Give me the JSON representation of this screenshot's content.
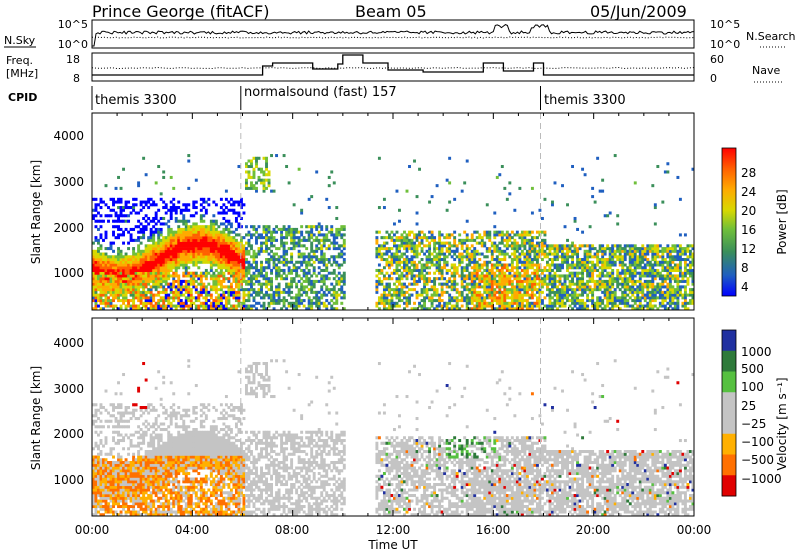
{
  "header": {
    "station": "Prince George (fitACF)",
    "beam": "Beam 05",
    "date": "05/Jun/2009"
  },
  "noise_panel": {
    "left_label": "N.Sky",
    "right_label": "N.Search",
    "left_ticks": [
      "10^5",
      "10^0"
    ],
    "right_ticks": [
      "10^5",
      "10^0"
    ]
  },
  "freq_panel": {
    "left_label_1": "Freq.",
    "left_label_2": "[MHz]",
    "right_label": "Nave",
    "left_ticks": [
      "18",
      "8"
    ],
    "right_ticks": [
      "60",
      "0"
    ]
  },
  "cpid": {
    "label": "CPID",
    "segments": [
      {
        "name": "themis 3300",
        "start_hour": 0,
        "end_hour": 6
      },
      {
        "name": "normalsound (fast) 157",
        "start_hour": 6,
        "end_hour": 18
      },
      {
        "name": "themis 3300",
        "start_hour": 18,
        "end_hour": 24
      }
    ]
  },
  "power_panel": {
    "ylabel": "Slant Range [km]",
    "yticks": [
      "4000",
      "3000",
      "2000",
      "1000"
    ],
    "colorbar_label": "Power [dB]",
    "colorbar_ticks": [
      "28",
      "24",
      "20",
      "16",
      "12",
      "8",
      "4"
    ]
  },
  "velocity_panel": {
    "ylabel": "Slant Range [km]",
    "yticks": [
      "4000",
      "3000",
      "2000",
      "1000"
    ],
    "colorbar_label": "Velocity [m s⁻¹]",
    "colorbar_ticks": [
      "1000",
      "500",
      "100",
      "25",
      "−25",
      "−100",
      "−500",
      "−1000"
    ]
  },
  "xaxis": {
    "label": "Time UT",
    "ticks": [
      "00:00",
      "04:00",
      "08:00",
      "12:00",
      "16:00",
      "20:00",
      "00:00"
    ]
  },
  "chart_data": [
    {
      "type": "heatmap",
      "title": "Prince George (fitACF) Beam 05 05/Jun/2009",
      "quantity": "Power",
      "xlabel": "Time UT",
      "ylabel": "Slant Range [km]",
      "xlim_hours": [
        0,
        24
      ],
      "ylim_km": [
        180,
        4500
      ],
      "clim_db": [
        0,
        30
      ],
      "colorscale": [
        "#0000ff",
        "#1f5fc0",
        "#3a8f5a",
        "#6fbf3a",
        "#d8d800",
        "#ffaa00",
        "#ff6000",
        "#ff0000"
      ],
      "data_gap_hours": [
        10.0,
        11.2
      ],
      "echo_regions": [
        {
          "t": [
            0.0,
            6.0
          ],
          "range_km": [
            600,
            2500
          ],
          "power_db": "10-28"
        },
        {
          "t": [
            6.0,
            10.0
          ],
          "range_km": [
            200,
            2000
          ],
          "power_db": "4-16"
        },
        {
          "t": [
            11.2,
            18.0
          ],
          "range_km": [
            200,
            1900
          ],
          "power_db": "4-24"
        },
        {
          "t": [
            18.0,
            24.0
          ],
          "range_km": [
            200,
            1600
          ],
          "power_db": "4-20"
        }
      ]
    },
    {
      "type": "heatmap",
      "quantity": "Velocity",
      "xlabel": "Time UT",
      "ylabel": "Slant Range [km]",
      "xlim_hours": [
        0,
        24
      ],
      "ylim_km": [
        180,
        4500
      ],
      "colorscale": [
        {
          "label": "1000",
          "color": "#2030a0"
        },
        {
          "label": "500",
          "color": "#2e7a3a"
        },
        {
          "label": "100",
          "color": "#56c040"
        },
        {
          "label": "25",
          "color": "#c4c4c4"
        },
        {
          "label": "−25",
          "color": "#c4c4c4"
        },
        {
          "label": "−100",
          "color": "#ffb000"
        },
        {
          "label": "−500",
          "color": "#ff7000"
        },
        {
          "label": "−1000",
          "color": "#e00000"
        }
      ],
      "data_gap_hours": [
        10.0,
        11.2
      ]
    }
  ]
}
